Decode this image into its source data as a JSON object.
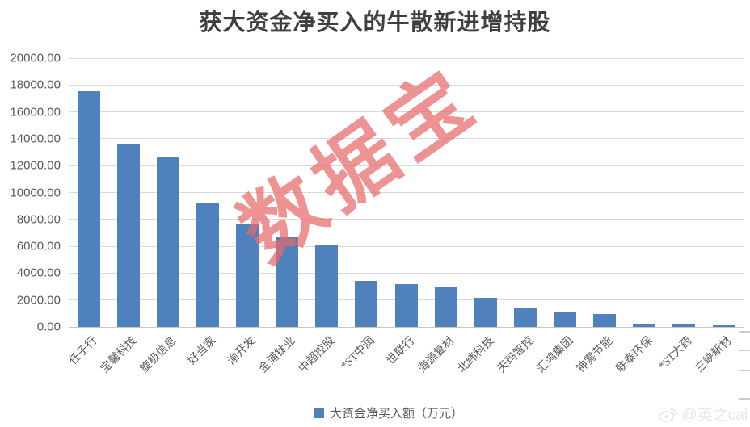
{
  "title": "获大资金净买入的牛散新进增持股",
  "watermark": {
    "text": "数据宝"
  },
  "credit": {
    "icon": "weibo-icon",
    "text": "@英之cai"
  },
  "legend": {
    "label": "大资金净买入额（万元）"
  },
  "colors": {
    "bar": "#4f81bd",
    "gridline": "#d9d9d9",
    "title_text": "#3f3f3f",
    "axis_text": "#595959",
    "watermark_pink": "#e86a6a",
    "credit_watermark": "#e9e6e3"
  },
  "y_axis": {
    "tick_labels": [
      "20000.00",
      "18000.00",
      "16000.00",
      "14000.00",
      "12000.00",
      "10000.00",
      "8000.00",
      "6000.00",
      "4000.00",
      "2000.00",
      "0.00"
    ]
  },
  "chart_data": {
    "type": "bar",
    "title": "获大资金净买入的牛散新进增持股",
    "categories": [
      "任子行",
      "宝馨科技",
      "旋极信息",
      "好当家",
      "渝开发",
      "金浦钛业",
      "中超控股",
      "*ST中润",
      "世联行",
      "海源复材",
      "北纬科技",
      "天玛智控",
      "汇鸿集团",
      "神雾节能",
      "联泰环保",
      "*ST大药",
      "三峡新材"
    ],
    "values": [
      17540,
      13570,
      12670,
      9190,
      7630,
      6720,
      6070,
      3400,
      3180,
      3000,
      2160,
      1380,
      1140,
      960,
      240,
      160,
      150
    ],
    "series_name": "大资金净买入额（万元）",
    "xlabel": "",
    "ylabel": "",
    "ylim": [
      0,
      20000
    ],
    "y_step": 2000,
    "grid": true,
    "legend_position": "bottom"
  }
}
